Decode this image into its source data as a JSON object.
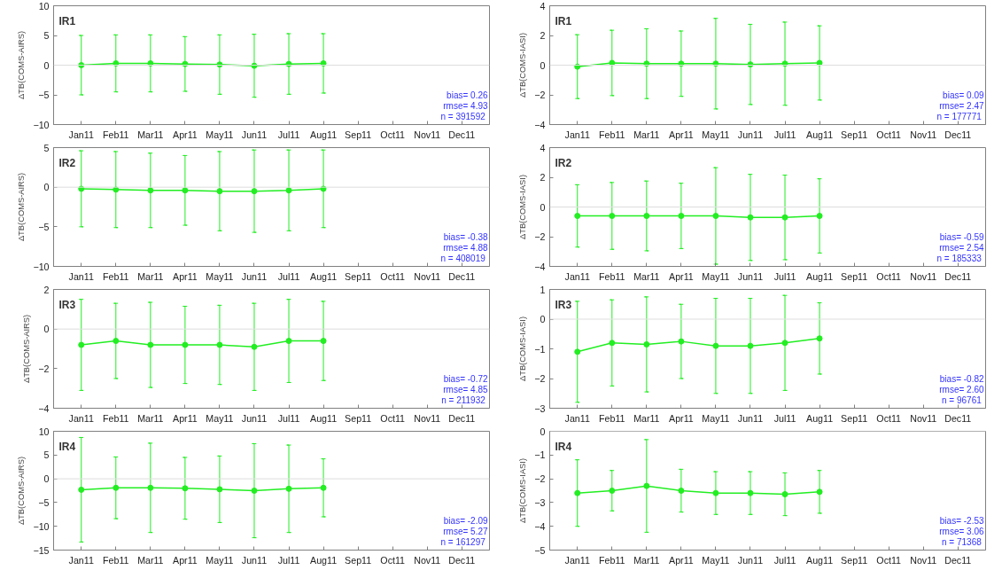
{
  "chart_data": [
    {
      "type": "line",
      "title": "IR1",
      "ylabel": "ΔTB(COMS-AIRS)",
      "categories": [
        "Jan11",
        "Feb11",
        "Mar11",
        "Apr11",
        "May11",
        "Jun11",
        "Jul11",
        "Aug11",
        "Sep11",
        "Oct11",
        "Nov11",
        "Dec11"
      ],
      "series": [
        {
          "color": "#22ee22",
          "values": [
            0.0,
            0.3,
            0.3,
            0.2,
            0.1,
            -0.1,
            0.2,
            0.3,
            null,
            null,
            null,
            null
          ],
          "errors": [
            5.0,
            4.8,
            4.8,
            4.6,
            5.0,
            5.3,
            5.1,
            5.0,
            null,
            null,
            null,
            null
          ]
        }
      ],
      "ylim": [
        -10,
        10
      ],
      "yticks": [
        -10,
        -5,
        0,
        5,
        10
      ],
      "marker": "circle",
      "grid": false,
      "ref_lines": [
        {
          "axis": "y",
          "value": 0,
          "color": "#dddddd"
        }
      ],
      "annotations": [
        "bias= 0.26",
        "rmse= 4.93",
        "n  = 391592"
      ]
    },
    {
      "type": "line",
      "title": "IR1",
      "ylabel": "ΔTB(COMS-IASI)",
      "categories": [
        "Jan11",
        "Feb11",
        "Mar11",
        "Apr11",
        "May11",
        "Jun11",
        "Jul11",
        "Aug11",
        "Sep11",
        "Oct11",
        "Nov11",
        "Dec11"
      ],
      "series": [
        {
          "color": "#22ee22",
          "values": [
            -0.1,
            0.15,
            0.1,
            0.1,
            0.1,
            0.05,
            0.1,
            0.15,
            null,
            null,
            null,
            null
          ],
          "errors": [
            2.15,
            2.2,
            2.35,
            2.2,
            3.05,
            2.7,
            2.8,
            2.5,
            null,
            null,
            null,
            null
          ]
        }
      ],
      "ylim": [
        -4,
        4
      ],
      "yticks": [
        -4,
        -2,
        0,
        2,
        4
      ],
      "marker": "circle",
      "grid": false,
      "ref_lines": [
        {
          "axis": "y",
          "value": 0,
          "color": "#dddddd"
        }
      ],
      "annotations": [
        "bias= 0.09",
        "rmse= 2.47",
        "n  = 177771"
      ]
    },
    {
      "type": "line",
      "title": "IR2",
      "ylabel": "ΔTB(COMS-AIRS)",
      "categories": [
        "Jan11",
        "Feb11",
        "Mar11",
        "Apr11",
        "May11",
        "Jun11",
        "Jul11",
        "Aug11",
        "Sep11",
        "Oct11",
        "Nov11",
        "Dec11"
      ],
      "series": [
        {
          "color": "#22ee22",
          "values": [
            -0.2,
            -0.3,
            -0.4,
            -0.4,
            -0.5,
            -0.5,
            -0.4,
            -0.2,
            null,
            null,
            null,
            null
          ],
          "errors": [
            4.8,
            4.8,
            4.7,
            4.4,
            5.0,
            5.2,
            5.1,
            4.9,
            null,
            null,
            null,
            null
          ]
        }
      ],
      "ylim": [
        -10,
        5
      ],
      "yticks": [
        -10,
        -5,
        0,
        5
      ],
      "marker": "circle",
      "grid": false,
      "ref_lines": [
        {
          "axis": "y",
          "value": 0,
          "color": "#dddddd"
        }
      ],
      "annotations": [
        "bias= -0.38",
        "rmse= 4.88",
        "n  = 408019"
      ]
    },
    {
      "type": "line",
      "title": "IR2",
      "ylabel": "ΔTB(COMS-IASI)",
      "categories": [
        "Jan11",
        "Feb11",
        "Mar11",
        "Apr11",
        "May11",
        "Jun11",
        "Jul11",
        "Aug11",
        "Sep11",
        "Oct11",
        "Nov11",
        "Dec11"
      ],
      "series": [
        {
          "color": "#22ee22",
          "values": [
            -0.6,
            -0.6,
            -0.6,
            -0.6,
            -0.6,
            -0.7,
            -0.7,
            -0.6,
            null,
            null,
            null,
            null
          ],
          "errors": [
            2.1,
            2.25,
            2.35,
            2.2,
            3.25,
            2.9,
            2.85,
            2.5,
            null,
            null,
            null,
            null
          ]
        }
      ],
      "ylim": [
        -4,
        4
      ],
      "yticks": [
        -4,
        -2,
        0,
        2,
        4
      ],
      "marker": "circle",
      "grid": false,
      "ref_lines": [
        {
          "axis": "y",
          "value": 0,
          "color": "#dddddd"
        }
      ],
      "annotations": [
        "bias= -0.59",
        "rmse= 2.54",
        "n  = 185333"
      ]
    },
    {
      "type": "line",
      "title": "IR3",
      "ylabel": "ΔTB(COMS-AIRS)",
      "categories": [
        "Jan11",
        "Feb11",
        "Mar11",
        "Apr11",
        "May11",
        "Jun11",
        "Jul11",
        "Aug11",
        "Sep11",
        "Oct11",
        "Nov11",
        "Dec11"
      ],
      "series": [
        {
          "color": "#22ee22",
          "values": [
            -0.8,
            -0.6,
            -0.8,
            -0.8,
            -0.8,
            -0.9,
            -0.6,
            -0.6,
            null,
            null,
            null,
            null
          ],
          "errors": [
            2.3,
            1.9,
            2.15,
            1.95,
            2.0,
            2.2,
            2.1,
            2.0,
            null,
            null,
            null,
            null
          ]
        }
      ],
      "ylim": [
        -4,
        2
      ],
      "yticks": [
        -4,
        -2,
        0,
        2
      ],
      "marker": "circle",
      "grid": false,
      "ref_lines": [
        {
          "axis": "y",
          "value": 0,
          "color": "#dddddd"
        }
      ],
      "annotations": [
        "bias= -0.72",
        "rmse= 4.85",
        "n  = 211932"
      ]
    },
    {
      "type": "line",
      "title": "IR3",
      "ylabel": "ΔTB(COMS-IASI)",
      "categories": [
        "Jan11",
        "Feb11",
        "Mar11",
        "Apr11",
        "May11",
        "Jun11",
        "Jul11",
        "Aug11",
        "Sep11",
        "Oct11",
        "Nov11",
        "Dec11"
      ],
      "series": [
        {
          "color": "#22ee22",
          "values": [
            -1.1,
            -0.8,
            -0.85,
            -0.75,
            -0.9,
            -0.9,
            -0.8,
            -0.65,
            null,
            null,
            null,
            null
          ],
          "errors": [
            1.7,
            1.45,
            1.6,
            1.25,
            1.6,
            1.6,
            1.6,
            1.2,
            null,
            null,
            null,
            null
          ]
        }
      ],
      "ylim": [
        -3,
        1
      ],
      "yticks": [
        -3,
        -2,
        -1,
        0,
        1
      ],
      "marker": "circle",
      "grid": false,
      "ref_lines": [
        {
          "axis": "y",
          "value": 0,
          "color": "#dddddd"
        }
      ],
      "annotations": [
        "bias= -0.82",
        "rmse= 2.60",
        "n  = 96761"
      ]
    },
    {
      "type": "line",
      "title": "IR4",
      "ylabel": "ΔTB(COMS-AIRS)",
      "categories": [
        "Jan11",
        "Feb11",
        "Mar11",
        "Apr11",
        "May11",
        "Jun11",
        "Jul11",
        "Aug11",
        "Sep11",
        "Oct11",
        "Nov11",
        "Dec11"
      ],
      "series": [
        {
          "color": "#22ee22",
          "values": [
            -2.3,
            -1.9,
            -1.9,
            -2.0,
            -2.2,
            -2.5,
            -2.1,
            -1.9,
            null,
            null,
            null,
            null
          ],
          "errors": [
            11.0,
            6.5,
            9.4,
            6.5,
            7.0,
            9.9,
            9.2,
            6.1,
            null,
            null,
            null,
            null
          ]
        }
      ],
      "ylim": [
        -15,
        10
      ],
      "yticks": [
        -15,
        -10,
        -5,
        0,
        5,
        10
      ],
      "marker": "circle",
      "grid": false,
      "ref_lines": [
        {
          "axis": "y",
          "value": 0,
          "color": "#dddddd"
        }
      ],
      "annotations": [
        "bias= -2.09",
        "rmse= 5.27",
        "n  = 161297"
      ]
    },
    {
      "type": "line",
      "title": "IR4",
      "ylabel": "ΔTB(COMS-IASI)",
      "categories": [
        "Jan11",
        "Feb11",
        "Mar11",
        "Apr11",
        "May11",
        "Jun11",
        "Jul11",
        "Aug11",
        "Sep11",
        "Oct11",
        "Nov11",
        "Dec11"
      ],
      "series": [
        {
          "color": "#22ee22",
          "values": [
            -2.6,
            -2.5,
            -2.3,
            -2.5,
            -2.6,
            -2.6,
            -2.65,
            -2.55,
            null,
            null,
            null,
            null
          ],
          "errors": [
            1.4,
            0.85,
            1.95,
            0.9,
            0.9,
            0.9,
            0.9,
            0.9,
            null,
            null,
            null,
            null
          ]
        }
      ],
      "ylim": [
        -5,
        0
      ],
      "yticks": [
        -5,
        -4,
        -3,
        -2,
        -1,
        0
      ],
      "marker": "circle",
      "grid": false,
      "ref_lines": [
        {
          "axis": "y",
          "value": 0,
          "color": "#dddddd"
        }
      ],
      "annotations": [
        "bias= -2.53",
        "rmse= 3.06",
        "n  = 71368"
      ]
    }
  ]
}
